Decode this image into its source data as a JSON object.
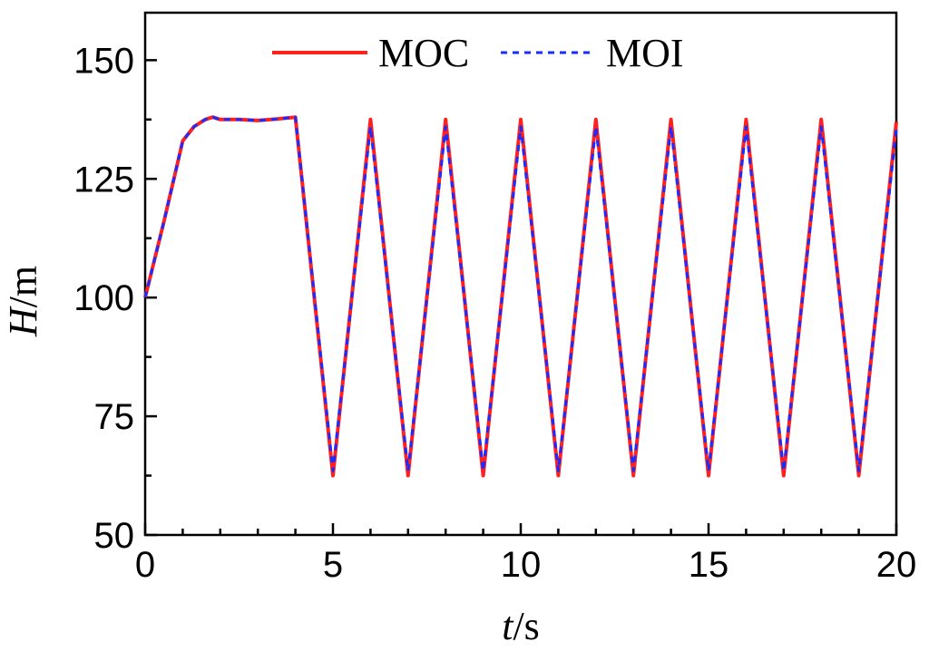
{
  "chart_data": {
    "type": "line",
    "title": "",
    "xlabel": {
      "var": "t",
      "unit": "/s"
    },
    "ylabel": {
      "var": "H",
      "unit": "/m"
    },
    "xlim": [
      0,
      20
    ],
    "ylim": [
      50,
      160
    ],
    "xticks": [
      0,
      5,
      10,
      15,
      20
    ],
    "xtick_labels": [
      "0",
      "5",
      "10",
      "15",
      "20"
    ],
    "yticks": [
      50,
      75,
      100,
      125,
      150
    ],
    "ytick_labels": [
      "50",
      "75",
      "100",
      "125",
      "150"
    ],
    "x_minor_step": 1,
    "y_minor_step": 12.5,
    "grid": false,
    "legend_position": "top-center",
    "series": [
      {
        "name": "MOC",
        "color": "#ff2020",
        "style": "solid",
        "x": [
          0,
          0.5,
          1,
          1.3,
          1.6,
          1.8,
          2,
          2.5,
          3,
          3.5,
          4,
          5,
          6,
          7,
          8,
          9,
          10,
          11,
          12,
          13,
          14,
          15,
          16,
          17,
          18,
          19,
          20
        ],
        "y": [
          100,
          116,
          133,
          136,
          137.5,
          138,
          137.5,
          137.5,
          137.3,
          137.6,
          138,
          62.5,
          137.5,
          62.5,
          137.5,
          62.5,
          137.5,
          62.5,
          137.5,
          62.5,
          137.5,
          62.5,
          137.5,
          62.5,
          137.5,
          62.5,
          137
        ]
      },
      {
        "name": "MOI",
        "color": "#1a2cff",
        "style": "dotted",
        "x": [
          0,
          0.5,
          1,
          1.3,
          1.6,
          1.8,
          2,
          2.5,
          3,
          3.5,
          4,
          5,
          6,
          7,
          8,
          9,
          10,
          11,
          12,
          13,
          14,
          15,
          16,
          17,
          18,
          19,
          20
        ],
        "y": [
          100,
          116,
          133,
          136,
          137.5,
          138,
          137.5,
          137.5,
          137.3,
          137.6,
          138,
          63.5,
          136,
          63.5,
          136,
          63.5,
          136,
          63.5,
          136,
          63.5,
          136,
          63.5,
          136,
          63.5,
          136,
          63.5,
          135.5
        ]
      }
    ]
  }
}
